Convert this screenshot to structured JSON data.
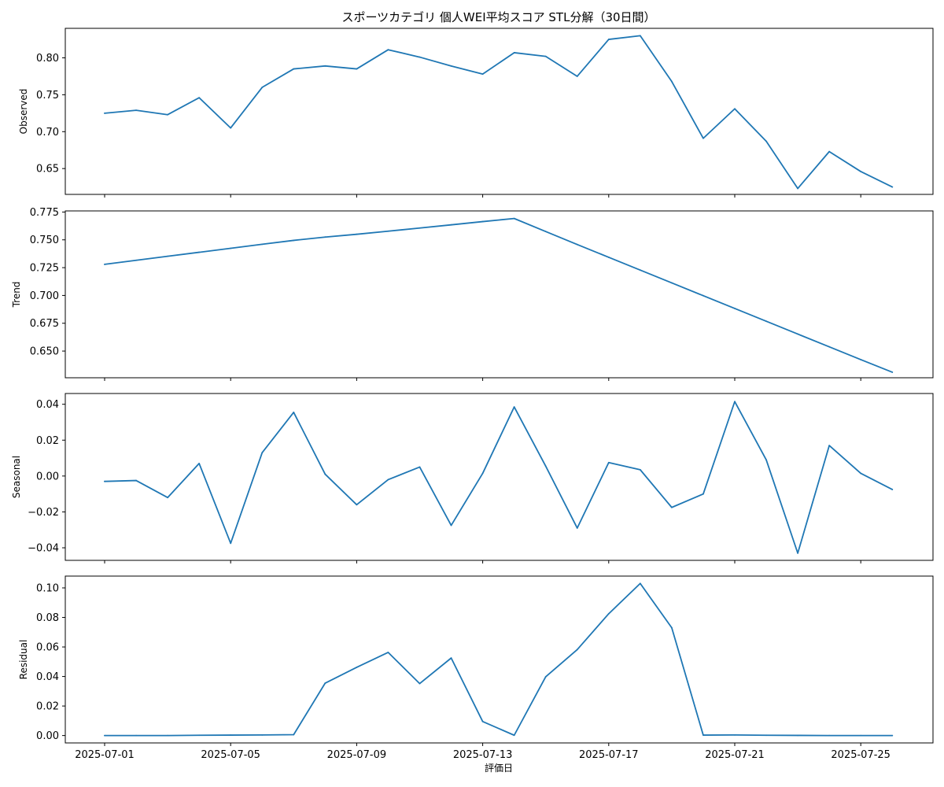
{
  "title": "スポーツカテゴリ 個人WEI平均スコア STL分解（30日間）",
  "xlabel": "評価日",
  "x_tick_labels": [
    "2025-07-01",
    "2025-07-05",
    "2025-07-09",
    "2025-07-13",
    "2025-07-17",
    "2025-07-21",
    "2025-07-25"
  ],
  "colors": {
    "line": "#1f77b4",
    "axes": "#000000",
    "background": "#ffffff"
  },
  "chart_data": [
    {
      "type": "line",
      "name": "observed",
      "ylabel": "Observed",
      "x": [
        "2025-07-01",
        "2025-07-02",
        "2025-07-03",
        "2025-07-04",
        "2025-07-05",
        "2025-07-06",
        "2025-07-07",
        "2025-07-08",
        "2025-07-09",
        "2025-07-10",
        "2025-07-11",
        "2025-07-12",
        "2025-07-13",
        "2025-07-14",
        "2025-07-15",
        "2025-07-16",
        "2025-07-17",
        "2025-07-18",
        "2025-07-19",
        "2025-07-20",
        "2025-07-21",
        "2025-07-22",
        "2025-07-23",
        "2025-07-24",
        "2025-07-25",
        "2025-07-26"
      ],
      "values": [
        0.725,
        0.729,
        0.723,
        0.746,
        0.705,
        0.76,
        0.785,
        0.789,
        0.785,
        0.811,
        0.801,
        0.789,
        0.778,
        0.807,
        0.802,
        0.775,
        0.825,
        0.83,
        0.768,
        0.691,
        0.731,
        0.687,
        0.623,
        0.673,
        0.646,
        0.625
      ],
      "ylim": [
        0.615,
        0.84
      ],
      "yticks": [
        0.65,
        0.7,
        0.75,
        0.8
      ],
      "ytick_labels": [
        "0.65",
        "0.70",
        "0.75",
        "0.80"
      ]
    },
    {
      "type": "line",
      "name": "trend",
      "ylabel": "Trend",
      "x": [
        "2025-07-01",
        "2025-07-02",
        "2025-07-03",
        "2025-07-04",
        "2025-07-05",
        "2025-07-06",
        "2025-07-07",
        "2025-07-08",
        "2025-07-09",
        "2025-07-10",
        "2025-07-11",
        "2025-07-12",
        "2025-07-13",
        "2025-07-14",
        "2025-07-15",
        "2025-07-16",
        "2025-07-17",
        "2025-07-18",
        "2025-07-19",
        "2025-07-20",
        "2025-07-21",
        "2025-07-22",
        "2025-07-23",
        "2025-07-24",
        "2025-07-25",
        "2025-07-26"
      ],
      "values": [
        0.728,
        0.7316,
        0.7352,
        0.7388,
        0.7424,
        0.746,
        0.7495,
        0.7525,
        0.755,
        0.7578,
        0.7606,
        0.7635,
        0.7664,
        0.7692,
        0.7575,
        0.7458,
        0.7343,
        0.7228,
        0.7113,
        0.6998,
        0.6883,
        0.6768,
        0.6653,
        0.6538,
        0.6423,
        0.631
      ],
      "ylim": [
        0.626,
        0.776
      ],
      "yticks": [
        0.65,
        0.675,
        0.7,
        0.725,
        0.75,
        0.775
      ],
      "ytick_labels": [
        "0.650",
        "0.675",
        "0.700",
        "0.725",
        "0.750",
        "0.775"
      ]
    },
    {
      "type": "line",
      "name": "seasonal",
      "ylabel": "Seasonal",
      "x": [
        "2025-07-01",
        "2025-07-02",
        "2025-07-03",
        "2025-07-04",
        "2025-07-05",
        "2025-07-06",
        "2025-07-07",
        "2025-07-08",
        "2025-07-09",
        "2025-07-10",
        "2025-07-11",
        "2025-07-12",
        "2025-07-13",
        "2025-07-14",
        "2025-07-15",
        "2025-07-16",
        "2025-07-17",
        "2025-07-18",
        "2025-07-19",
        "2025-07-20",
        "2025-07-21",
        "2025-07-22",
        "2025-07-23",
        "2025-07-24",
        "2025-07-25",
        "2025-07-26"
      ],
      "values": [
        -0.003,
        -0.0025,
        -0.012,
        0.007,
        -0.0375,
        0.013,
        0.0355,
        0.001,
        -0.016,
        -0.002,
        0.005,
        -0.0275,
        0.0015,
        0.0385,
        0.0055,
        -0.029,
        0.0075,
        0.0035,
        -0.0175,
        -0.01,
        0.0415,
        0.009,
        -0.043,
        0.017,
        0.0015,
        -0.0075
      ],
      "ylim": [
        -0.047,
        0.046
      ],
      "yticks": [
        -0.04,
        -0.02,
        0.0,
        0.02,
        0.04
      ],
      "ytick_labels": [
        "−0.04",
        "−0.02",
        "0.00",
        "0.02",
        "0.04"
      ]
    },
    {
      "type": "line",
      "name": "residual",
      "ylabel": "Residual",
      "x": [
        "2025-07-01",
        "2025-07-02",
        "2025-07-03",
        "2025-07-04",
        "2025-07-05",
        "2025-07-06",
        "2025-07-07",
        "2025-07-08",
        "2025-07-09",
        "2025-07-10",
        "2025-07-11",
        "2025-07-12",
        "2025-07-13",
        "2025-07-14",
        "2025-07-15",
        "2025-07-16",
        "2025-07-17",
        "2025-07-18",
        "2025-07-19",
        "2025-07-20",
        "2025-07-21",
        "2025-07-22",
        "2025-07-23",
        "2025-07-24",
        "2025-07-25",
        "2025-07-26"
      ],
      "values": [
        0.0,
        0.0,
        0.0,
        0.0002,
        0.0003,
        0.0004,
        0.0006,
        0.0355,
        0.0462,
        0.0563,
        0.0352,
        0.0525,
        0.0095,
        0.0002,
        0.0398,
        0.0582,
        0.0825,
        0.103,
        0.073,
        0.0003,
        0.0004,
        0.0002,
        0.0001,
        0.0,
        0.0,
        0.0
      ],
      "ylim": [
        -0.005,
        0.108
      ],
      "yticks": [
        0.0,
        0.02,
        0.04,
        0.06,
        0.08,
        0.1
      ],
      "ytick_labels": [
        "0.00",
        "0.02",
        "0.04",
        "0.06",
        "0.08",
        "0.10"
      ]
    }
  ]
}
